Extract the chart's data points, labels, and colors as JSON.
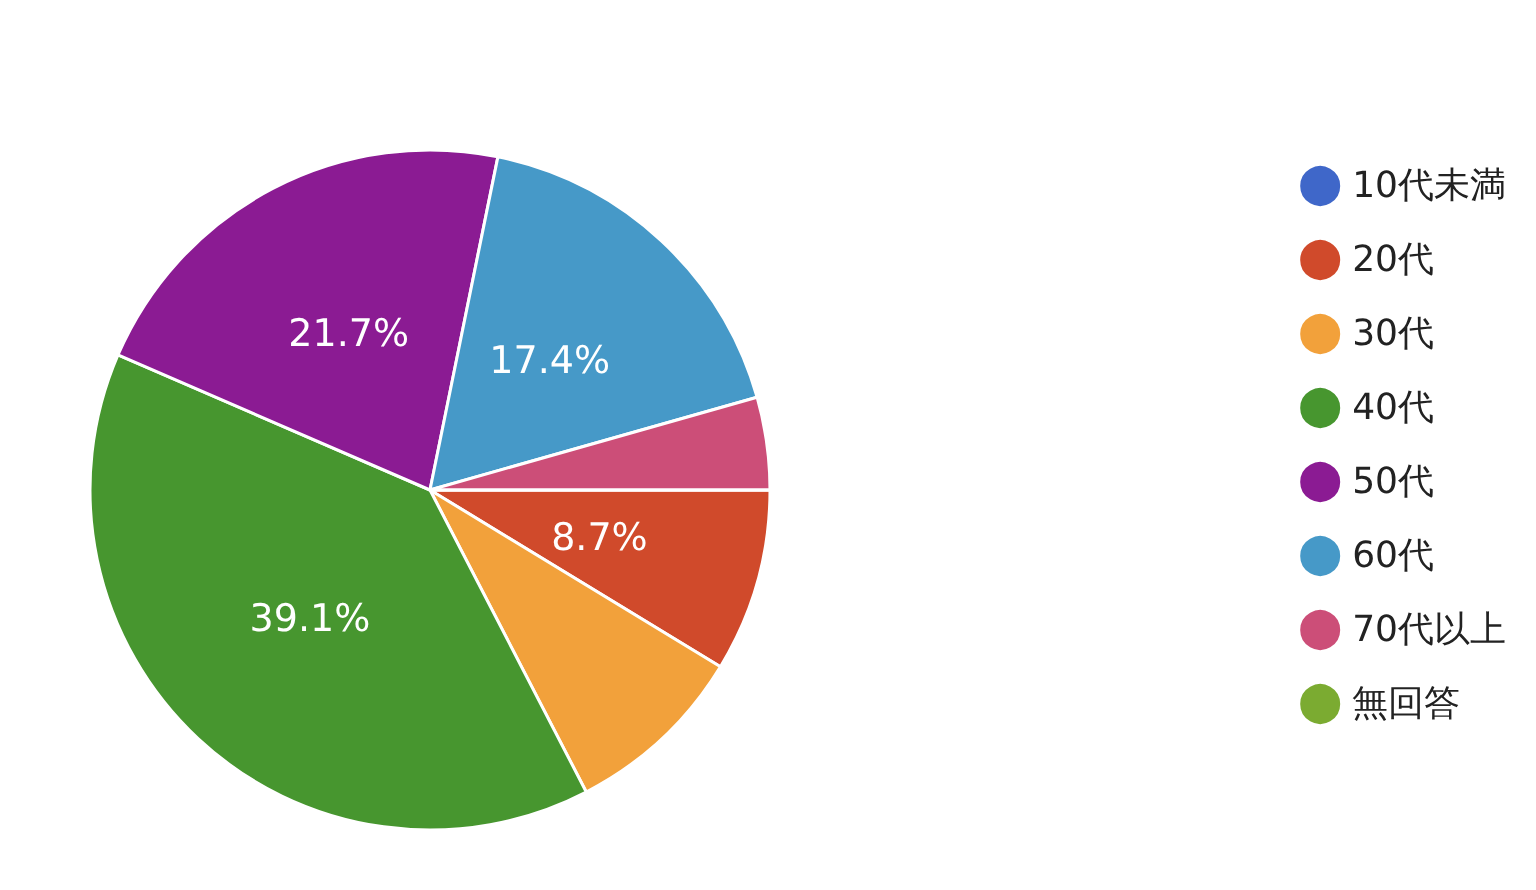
{
  "chart_data": {
    "type": "pie",
    "categories": [
      "10代未満",
      "20代",
      "30代",
      "40代",
      "50代",
      "60代",
      "70代以上",
      "無回答"
    ],
    "values": [
      0,
      8.7,
      8.7,
      39.1,
      21.7,
      17.4,
      4.4,
      0
    ],
    "colors": [
      "#3f67c9",
      "#d04a2b",
      "#f2a13b",
      "#47962f",
      "#8b1b93",
      "#4699c8",
      "#cc4e78",
      "#7bab31"
    ],
    "value_labels": [
      null,
      "8.7%",
      null,
      "39.1%",
      "21.7%",
      "17.4%",
      null,
      null
    ],
    "legend": "right"
  }
}
